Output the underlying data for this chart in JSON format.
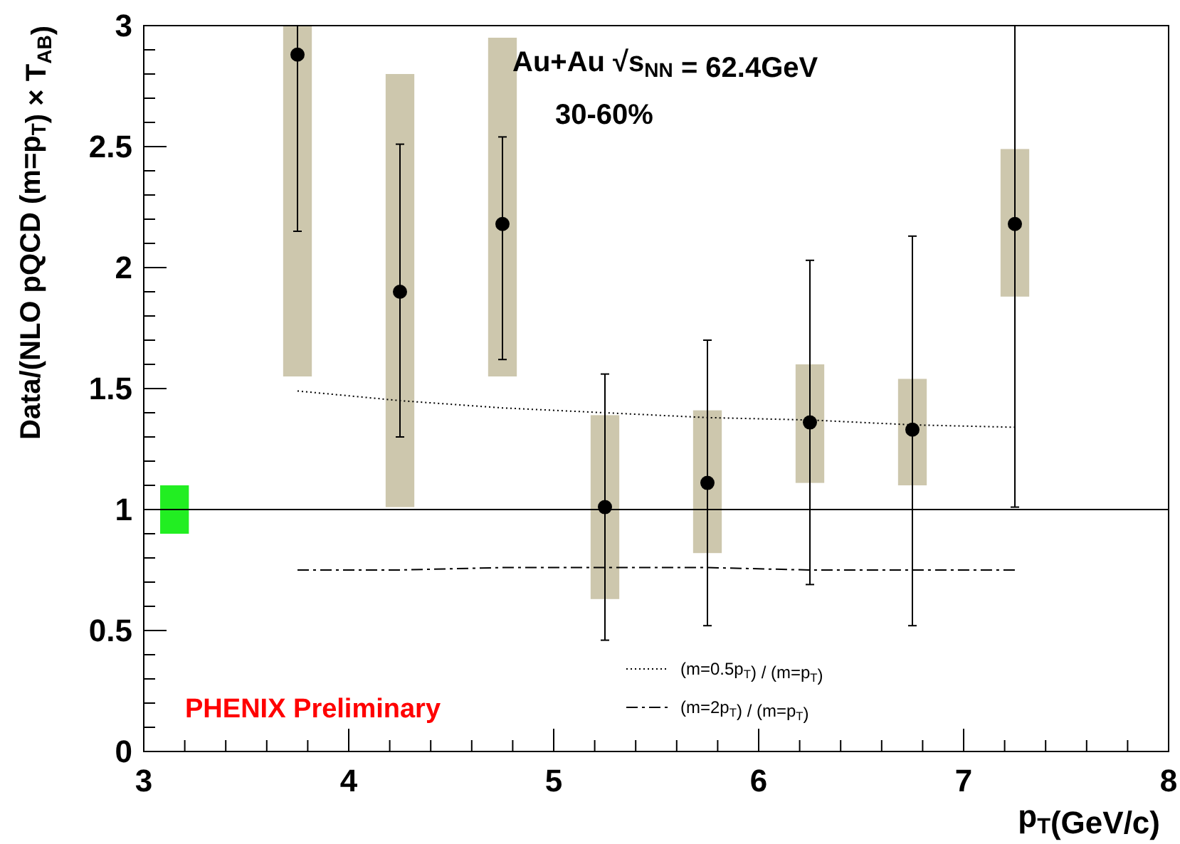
{
  "chart_data": {
    "type": "scatter",
    "xlabel": "p$_{T}$(GeV/c)",
    "ylabel": "Data/(NLO pQCD (m=p$_{T}$) × T$_{AB}$)",
    "annotations": [
      "Au+Au √s$_{NN}$ = 62.4GeV",
      "30-60%",
      "PHENIX Preliminary"
    ],
    "xlim": [
      3,
      8
    ],
    "xticks": [
      3,
      4,
      5,
      6,
      7,
      8
    ],
    "ylim": [
      0,
      3
    ],
    "yticks": [
      0,
      0.5,
      1,
      1.5,
      2,
      2.5,
      3
    ],
    "grid": false,
    "legend": "bottom right",
    "marker": "circle",
    "ref_lines": [
      {
        "axis": "y",
        "value": 1,
        "color": "#000000",
        "line_style": "solid"
      }
    ],
    "series": [
      {
        "type": "bar",
        "color": "#cdc7ad",
        "x": [
          3.75,
          4.25,
          4.75,
          5.25,
          5.75,
          6.25,
          6.75,
          7.25
        ],
        "base": [
          1.55,
          1.01,
          1.55,
          0.63,
          0.82,
          1.11,
          1.1,
          1.88
        ],
        "values": [
          1.45,
          1.79,
          1.4,
          0.76,
          0.59,
          0.49,
          0.44,
          0.61
        ]
      },
      {
        "type": "bar",
        "color": "#22ee22",
        "x": [
          3.15
        ],
        "base": [
          0.9
        ],
        "values": [
          0.2
        ]
      },
      {
        "type": "line",
        "name": "(m=0.5p$_{T}$) / (m=p$_{T}$)",
        "color": "#000000",
        "line_style": "dotted",
        "marker": "none",
        "x": [
          3.75,
          4.25,
          4.75,
          5.25,
          5.75,
          6.25,
          6.75,
          7.25
        ],
        "values": [
          1.49,
          1.45,
          1.42,
          1.4,
          1.38,
          1.37,
          1.35,
          1.34
        ]
      },
      {
        "type": "line",
        "name": "(m=2p$_{T}$) / (m=p$_{T}$)",
        "color": "#000000",
        "line_style": "dashed",
        "marker": "none",
        "x": [
          3.75,
          4.25,
          4.75,
          5.25,
          5.75,
          6.25,
          6.75,
          7.25
        ],
        "values": [
          0.75,
          0.75,
          0.76,
          0.76,
          0.76,
          0.75,
          0.75,
          0.75
        ]
      },
      {
        "color": "#000000",
        "x": [
          3.75,
          4.25,
          4.75,
          5.25,
          5.75,
          6.25,
          6.75,
          7.25
        ],
        "values": [
          2.88,
          1.9,
          2.18,
          1.01,
          1.11,
          1.36,
          1.33,
          2.18
        ],
        "errors": [
          [
            2.15,
            3
          ],
          [
            1.3,
            2.51
          ],
          [
            1.62,
            2.54
          ],
          [
            0.46,
            1.56
          ],
          [
            0.52,
            1.7
          ],
          [
            0.69,
            2.03
          ],
          [
            0.52,
            2.13
          ],
          [
            1.01,
            3
          ]
        ]
      }
    ]
  }
}
